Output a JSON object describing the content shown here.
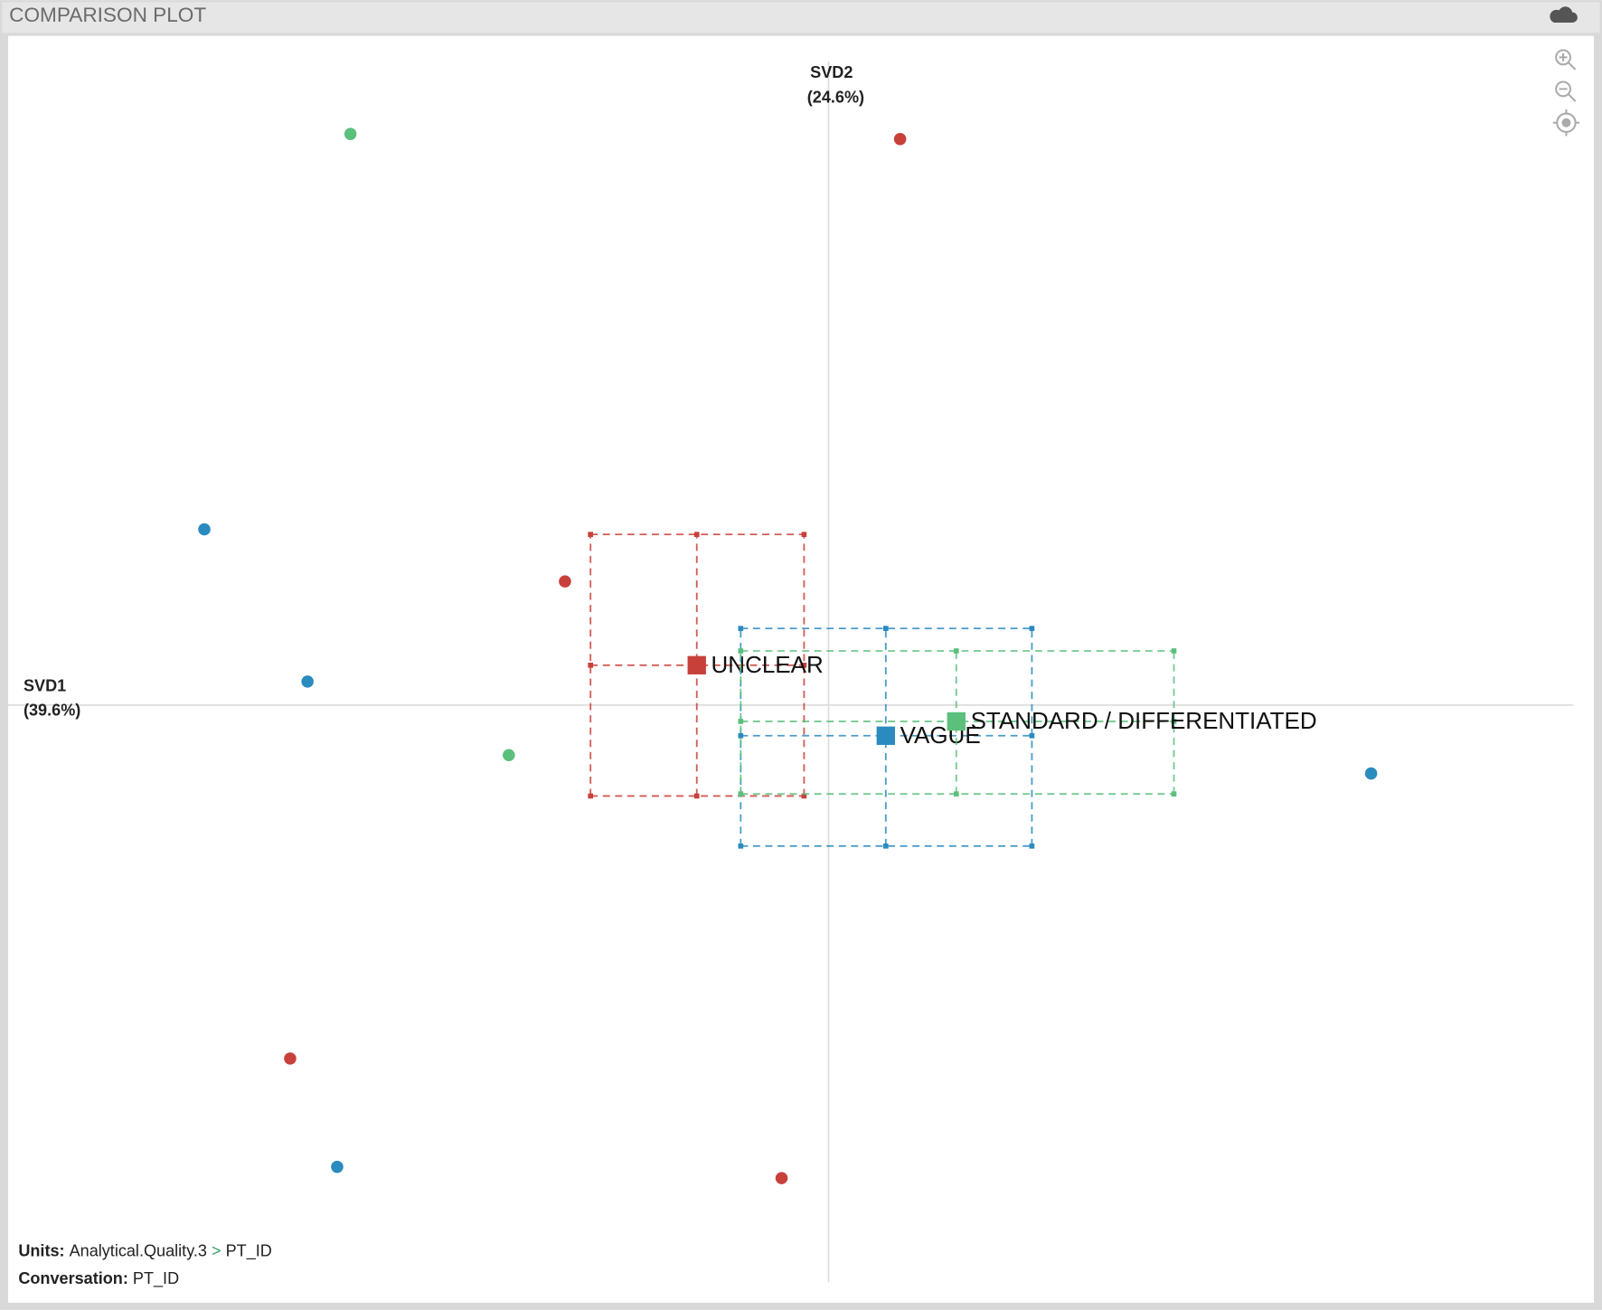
{
  "header": {
    "title": "COMPARISON PLOT"
  },
  "chart_data": {
    "type": "scatter",
    "xlabel": [
      "SVD1",
      "(39.6%)"
    ],
    "ylabel": [
      "SVD2",
      "(24.6%)"
    ],
    "xlim": [
      -8.03,
      7.49
    ],
    "ylim": [
      -5.85,
      6.55
    ],
    "series": [
      {
        "name": "UNCLEAR",
        "color": "#c8403a",
        "x": [
          0.7,
          -2.58,
          -5.27,
          -0.46
        ],
        "y": [
          5.54,
          1.21,
          -3.46,
          -4.63
        ],
        "mean_x": -1.29,
        "mean_y": 0.39,
        "ci_x": [
          -2.33,
          -0.24
        ],
        "ci_y": [
          -0.89,
          1.67
        ]
      },
      {
        "name": "VAGUE",
        "color": "#2a8bbf",
        "x": [
          -6.11,
          -5.1,
          -4.81,
          5.31
        ],
        "y": [
          1.72,
          0.23,
          -4.52,
          -0.67
        ],
        "mean_x": 0.56,
        "mean_y": -0.3,
        "ci_x": [
          -0.86,
          1.99
        ],
        "ci_y": [
          -1.38,
          0.75
        ]
      },
      {
        "name": "STANDARD / DIFFERENTIATED",
        "color": "#5cbf7c",
        "x": [
          -4.68,
          -3.13
        ],
        "y": [
          5.59,
          -0.49
        ],
        "mean_x": 1.25,
        "mean_y": -0.16,
        "ci_x": [
          -0.86,
          3.38
        ],
        "ci_y": [
          -0.87,
          0.53
        ]
      }
    ]
  },
  "footer": {
    "units_label": "Units:",
    "units_value": "Analytical.Quality.3",
    "separator": ">",
    "units_id": "PT_ID",
    "conversation_label": "Conversation:",
    "conversation_value": "PT_ID"
  }
}
